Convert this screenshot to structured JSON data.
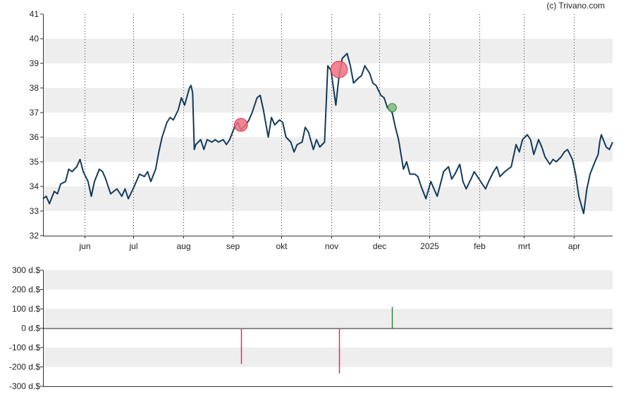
{
  "copyright": "(c) Trivano.com",
  "colors": {
    "line": "#123a5a",
    "band": "#eeeeee",
    "sell": "#e03050",
    "buy": "#2e8b3e",
    "sell_marker": "#f07080",
    "buy_marker": "#7fb87f"
  },
  "chart_data": [
    {
      "type": "line",
      "title": "",
      "xlabel": "",
      "ylabel": "",
      "ylim": [
        32,
        41
      ],
      "yticks": [
        "32",
        "33",
        "34",
        "35",
        "36",
        "37",
        "38",
        "39",
        "40",
        "41"
      ],
      "xlim": [
        "2024-05-06",
        "2025-04-25"
      ],
      "grid": true,
      "month_ticks": [
        {
          "label": "jun",
          "date": "2024-06-01"
        },
        {
          "label": "jul",
          "date": "2024-07-01"
        },
        {
          "label": "aug",
          "date": "2024-08-01"
        },
        {
          "label": "sep",
          "date": "2024-09-01"
        },
        {
          "label": "okt",
          "date": "2024-10-01"
        },
        {
          "label": "nov",
          "date": "2024-11-01"
        },
        {
          "label": "dec",
          "date": "2024-12-01"
        },
        {
          "label": "2025",
          "date": "2025-01-01"
        },
        {
          "label": "feb",
          "date": "2025-02-01"
        },
        {
          "label": "mrt",
          "date": "2025-03-01"
        },
        {
          "label": "apr",
          "date": "2025-04-01"
        }
      ],
      "series": [
        {
          "points": [
            [
              "2024-05-06",
              33.5
            ],
            [
              "2024-05-08",
              33.6
            ],
            [
              "2024-05-10",
              33.3
            ],
            [
              "2024-05-13",
              33.8
            ],
            [
              "2024-05-15",
              33.7
            ],
            [
              "2024-05-17",
              34.1
            ],
            [
              "2024-05-20",
              34.2
            ],
            [
              "2024-05-22",
              34.7
            ],
            [
              "2024-05-24",
              34.6
            ],
            [
              "2024-05-27",
              34.8
            ],
            [
              "2024-05-29",
              35.1
            ],
            [
              "2024-05-31",
              34.6
            ],
            [
              "2024-06-03",
              34.2
            ],
            [
              "2024-06-05",
              33.6
            ],
            [
              "2024-06-07",
              34.2
            ],
            [
              "2024-06-10",
              34.7
            ],
            [
              "2024-06-12",
              34.6
            ],
            [
              "2024-06-14",
              34.3
            ],
            [
              "2024-06-17",
              33.7
            ],
            [
              "2024-06-19",
              33.8
            ],
            [
              "2024-06-21",
              33.9
            ],
            [
              "2024-06-24",
              33.6
            ],
            [
              "2024-06-26",
              33.9
            ],
            [
              "2024-06-28",
              33.5
            ],
            [
              "2024-07-01",
              33.9
            ],
            [
              "2024-07-03",
              34.2
            ],
            [
              "2024-07-05",
              34.5
            ],
            [
              "2024-07-08",
              34.4
            ],
            [
              "2024-07-10",
              34.6
            ],
            [
              "2024-07-12",
              34.2
            ],
            [
              "2024-07-15",
              34.7
            ],
            [
              "2024-07-17",
              35.4
            ],
            [
              "2024-07-19",
              36.0
            ],
            [
              "2024-07-22",
              36.6
            ],
            [
              "2024-07-24",
              36.8
            ],
            [
              "2024-07-26",
              36.7
            ],
            [
              "2024-07-29",
              37.1
            ],
            [
              "2024-07-31",
              37.6
            ],
            [
              "2024-08-02",
              37.3
            ],
            [
              "2024-08-05",
              38.0
            ],
            [
              "2024-08-06",
              38.1
            ],
            [
              "2024-08-07",
              37.8
            ],
            [
              "2024-08-08",
              35.5
            ],
            [
              "2024-08-09",
              35.7
            ],
            [
              "2024-08-12",
              35.9
            ],
            [
              "2024-08-14",
              35.5
            ],
            [
              "2024-08-16",
              35.9
            ],
            [
              "2024-08-19",
              35.8
            ],
            [
              "2024-08-21",
              35.9
            ],
            [
              "2024-08-23",
              35.8
            ],
            [
              "2024-08-26",
              35.9
            ],
            [
              "2024-08-28",
              35.7
            ],
            [
              "2024-08-30",
              35.9
            ],
            [
              "2024-09-02",
              36.4
            ],
            [
              "2024-09-04",
              36.6
            ],
            [
              "2024-09-06",
              36.3
            ],
            [
              "2024-09-09",
              36.5
            ],
            [
              "2024-09-11",
              36.7
            ],
            [
              "2024-09-13",
              37.0
            ],
            [
              "2024-09-16",
              37.6
            ],
            [
              "2024-09-18",
              37.7
            ],
            [
              "2024-09-20",
              37.1
            ],
            [
              "2024-09-23",
              36.0
            ],
            [
              "2024-09-25",
              36.8
            ],
            [
              "2024-09-27",
              36.5
            ],
            [
              "2024-09-30",
              36.7
            ],
            [
              "2024-10-02",
              36.6
            ],
            [
              "2024-10-04",
              36.0
            ],
            [
              "2024-10-07",
              35.8
            ],
            [
              "2024-10-09",
              35.4
            ],
            [
              "2024-10-11",
              35.7
            ],
            [
              "2024-10-14",
              35.8
            ],
            [
              "2024-10-16",
              36.4
            ],
            [
              "2024-10-18",
              36.2
            ],
            [
              "2024-10-21",
              35.5
            ],
            [
              "2024-10-23",
              35.9
            ],
            [
              "2024-10-25",
              35.6
            ],
            [
              "2024-10-28",
              35.8
            ],
            [
              "2024-10-30",
              38.9
            ],
            [
              "2024-11-01",
              38.7
            ],
            [
              "2024-11-04",
              37.3
            ],
            [
              "2024-11-06",
              38.5
            ],
            [
              "2024-11-08",
              39.2
            ],
            [
              "2024-11-11",
              39.4
            ],
            [
              "2024-11-13",
              38.9
            ],
            [
              "2024-11-15",
              38.2
            ],
            [
              "2024-11-18",
              38.4
            ],
            [
              "2024-11-20",
              38.5
            ],
            [
              "2024-11-22",
              38.9
            ],
            [
              "2024-11-25",
              38.6
            ],
            [
              "2024-11-27",
              38.2
            ],
            [
              "2024-11-29",
              38.1
            ],
            [
              "2024-12-02",
              37.7
            ],
            [
              "2024-12-04",
              37.6
            ],
            [
              "2024-12-06",
              37.2
            ],
            [
              "2024-12-09",
              37.0
            ],
            [
              "2024-12-11",
              36.4
            ],
            [
              "2024-12-13",
              35.9
            ],
            [
              "2024-12-16",
              34.7
            ],
            [
              "2024-12-18",
              35.0
            ],
            [
              "2024-12-20",
              34.5
            ],
            [
              "2024-12-23",
              34.5
            ],
            [
              "2024-12-25",
              34.4
            ],
            [
              "2024-12-27",
              34.0
            ],
            [
              "2024-12-30",
              33.5
            ],
            [
              "2025-01-02",
              34.2
            ],
            [
              "2025-01-04",
              33.9
            ],
            [
              "2025-01-06",
              33.6
            ],
            [
              "2025-01-08",
              34.1
            ],
            [
              "2025-01-10",
              34.6
            ],
            [
              "2025-01-13",
              34.8
            ],
            [
              "2025-01-15",
              34.3
            ],
            [
              "2025-01-17",
              34.5
            ],
            [
              "2025-01-20",
              34.9
            ],
            [
              "2025-01-22",
              34.2
            ],
            [
              "2025-01-24",
              33.9
            ],
            [
              "2025-01-27",
              34.3
            ],
            [
              "2025-01-29",
              34.6
            ],
            [
              "2025-01-31",
              34.4
            ],
            [
              "2025-02-03",
              34.1
            ],
            [
              "2025-02-05",
              33.9
            ],
            [
              "2025-02-07",
              34.2
            ],
            [
              "2025-02-10",
              34.6
            ],
            [
              "2025-02-12",
              34.8
            ],
            [
              "2025-02-14",
              34.4
            ],
            [
              "2025-02-17",
              34.6
            ],
            [
              "2025-02-19",
              34.7
            ],
            [
              "2025-02-21",
              34.8
            ],
            [
              "2025-02-24",
              35.7
            ],
            [
              "2025-02-26",
              35.4
            ],
            [
              "2025-02-28",
              35.9
            ],
            [
              "2025-03-03",
              36.1
            ],
            [
              "2025-03-05",
              35.9
            ],
            [
              "2025-03-07",
              35.3
            ],
            [
              "2025-03-10",
              35.9
            ],
            [
              "2025-03-12",
              35.6
            ],
            [
              "2025-03-14",
              35.2
            ],
            [
              "2025-03-17",
              34.9
            ],
            [
              "2025-03-19",
              35.1
            ],
            [
              "2025-03-21",
              35.0
            ],
            [
              "2025-03-24",
              35.2
            ],
            [
              "2025-03-26",
              35.4
            ],
            [
              "2025-03-28",
              35.5
            ],
            [
              "2025-03-31",
              35.1
            ],
            [
              "2025-04-02",
              34.5
            ],
            [
              "2025-04-04",
              33.6
            ],
            [
              "2025-04-07",
              32.9
            ],
            [
              "2025-04-09",
              33.9
            ],
            [
              "2025-04-11",
              34.5
            ],
            [
              "2025-04-14",
              35.0
            ],
            [
              "2025-04-16",
              35.3
            ],
            [
              "2025-04-17",
              35.8
            ],
            [
              "2025-04-18",
              36.1
            ],
            [
              "2025-04-21",
              35.6
            ],
            [
              "2025-04-23",
              35.5
            ],
            [
              "2025-04-25",
              35.8
            ]
          ]
        }
      ],
      "markers": [
        {
          "date": "2024-09-06",
          "y": 36.5,
          "type": "sell"
        },
        {
          "date": "2024-11-06",
          "y": 38.75,
          "type": "sell"
        },
        {
          "date": "2024-12-09",
          "y": 37.2,
          "type": "buy"
        }
      ]
    },
    {
      "type": "bar",
      "title": "",
      "xlabel": "",
      "ylabel": "",
      "ylim": [
        -300,
        300
      ],
      "yticks": [
        "-300 d.$",
        "-200 d.$",
        "-100 d.$",
        "0 d.$",
        "100 d.$",
        "200 d.$",
        "300 d.$"
      ],
      "grid": true,
      "bars": [
        {
          "date": "2024-09-06",
          "value": -185,
          "type": "sell"
        },
        {
          "date": "2024-11-06",
          "value": -235,
          "type": "sell"
        },
        {
          "date": "2024-12-09",
          "value": 110,
          "type": "buy"
        }
      ]
    }
  ]
}
